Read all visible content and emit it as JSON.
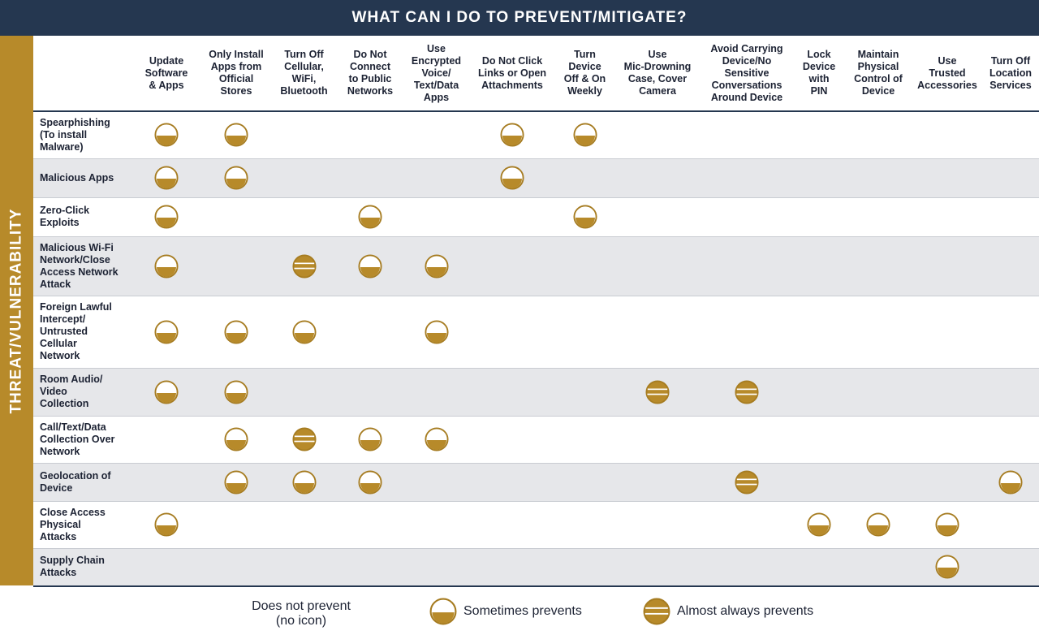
{
  "title": "WHAT CAN I DO TO PREVENT/MITIGATE?",
  "side_label": "THREAT/VULNERABILITY",
  "colors": {
    "header_bg": "#253750",
    "side_bg": "#b78a2a",
    "icon_fill": "#b78a2a",
    "icon_ring": "#a67c21",
    "row_alt": "#e6e7ea"
  },
  "columns": [
    {
      "label": "Update Software & Apps",
      "lines": [
        "Update",
        "Software",
        "& Apps"
      ]
    },
    {
      "label": "Only Install Apps from Official Stores",
      "lines": [
        "Only Install",
        "Apps from",
        "Official",
        "Stores"
      ]
    },
    {
      "label": "Turn Off Cellular, WiFi, Bluetooth",
      "lines": [
        "Turn Off",
        "Cellular,",
        "WiFi,",
        "Bluetooth"
      ]
    },
    {
      "label": "Do Not Connect to Public Networks",
      "lines": [
        "Do Not",
        "Connect",
        "to Public",
        "Networks"
      ]
    },
    {
      "label": "Use Encrypted Voice/ Text/Data Apps",
      "lines": [
        "Use",
        "Encrypted",
        "Voice/",
        "Text/Data",
        "Apps"
      ]
    },
    {
      "label": "Do Not Click Links or Open Attachments",
      "lines": [
        "Do Not Click",
        "Links or Open",
        "Attachments"
      ]
    },
    {
      "label": "Turn Device Off & On Weekly",
      "lines": [
        "Turn",
        "Device",
        "Off & On",
        "Weekly"
      ]
    },
    {
      "label": "Use Mic-Drowning Case, Cover Camera",
      "lines": [
        "Use",
        "Mic-Drowning",
        "Case, Cover",
        "Camera"
      ]
    },
    {
      "label": "Avoid Carrying Device/No Sensitive Conversations Around Device",
      "lines": [
        "Avoid Carrying",
        "Device/No",
        "Sensitive",
        "Conversations",
        "Around Device"
      ]
    },
    {
      "label": "Lock Device with PIN",
      "lines": [
        "Lock",
        "Device",
        "with",
        "PIN"
      ]
    },
    {
      "label": "Maintain Physical Control of Device",
      "lines": [
        "Maintain",
        "Physical",
        "Control of",
        "Device"
      ]
    },
    {
      "label": "Use Trusted Accessories",
      "lines": [
        "Use",
        "Trusted",
        "Accessories"
      ]
    },
    {
      "label": "Turn Off Location Services",
      "lines": [
        "Turn Off",
        "Location",
        "Services"
      ]
    }
  ],
  "rows": [
    {
      "threat": "Spearphishing (To install Malware)",
      "lines": [
        "Spearphishing",
        "(To install",
        "Malware)"
      ],
      "cells": [
        "sometimes",
        "sometimes",
        "none",
        "none",
        "none",
        "sometimes",
        "sometimes",
        "none",
        "none",
        "none",
        "none",
        "none",
        "none"
      ]
    },
    {
      "threat": "Malicious Apps",
      "lines": [
        "Malicious Apps"
      ],
      "cells": [
        "sometimes",
        "sometimes",
        "none",
        "none",
        "none",
        "sometimes",
        "none",
        "none",
        "none",
        "none",
        "none",
        "none",
        "none"
      ]
    },
    {
      "threat": "Zero-Click Exploits",
      "lines": [
        "Zero-Click",
        "Exploits"
      ],
      "cells": [
        "sometimes",
        "none",
        "none",
        "sometimes",
        "none",
        "none",
        "sometimes",
        "none",
        "none",
        "none",
        "none",
        "none",
        "none"
      ]
    },
    {
      "threat": "Malicious Wi-Fi Network/Close Access Network Attack",
      "lines": [
        "Malicious Wi-Fi",
        "Network/Close",
        "Access Network",
        "Attack"
      ],
      "cells": [
        "sometimes",
        "none",
        "almost",
        "sometimes",
        "sometimes",
        "none",
        "none",
        "none",
        "none",
        "none",
        "none",
        "none",
        "none"
      ]
    },
    {
      "threat": "Foreign Lawful Intercept/ Untrusted Cellular Network",
      "lines": [
        "Foreign Lawful",
        "Intercept/",
        "Untrusted",
        "Cellular",
        "Network"
      ],
      "cells": [
        "sometimes",
        "sometimes",
        "sometimes",
        "none",
        "sometimes",
        "none",
        "none",
        "none",
        "none",
        "none",
        "none",
        "none",
        "none"
      ]
    },
    {
      "threat": "Room Audio/ Video Collection",
      "lines": [
        "Room Audio/",
        "Video",
        "Collection"
      ],
      "cells": [
        "sometimes",
        "sometimes",
        "none",
        "none",
        "none",
        "none",
        "none",
        "almost",
        "almost",
        "none",
        "none",
        "none",
        "none"
      ]
    },
    {
      "threat": "Call/Text/Data Collection Over Network",
      "lines": [
        "Call/Text/Data",
        "Collection Over",
        "Network"
      ],
      "cells": [
        "none",
        "sometimes",
        "almost",
        "sometimes",
        "sometimes",
        "none",
        "none",
        "none",
        "none",
        "none",
        "none",
        "none",
        "none"
      ]
    },
    {
      "threat": "Geolocation of Device",
      "lines": [
        "Geolocation of",
        "Device"
      ],
      "cells": [
        "none",
        "sometimes",
        "sometimes",
        "sometimes",
        "none",
        "none",
        "none",
        "none",
        "almost",
        "none",
        "none",
        "none",
        "sometimes"
      ]
    },
    {
      "threat": "Close Access Physical Attacks",
      "lines": [
        "Close Access",
        "Physical",
        "Attacks"
      ],
      "cells": [
        "sometimes",
        "none",
        "none",
        "none",
        "none",
        "none",
        "none",
        "none",
        "none",
        "sometimes",
        "sometimes",
        "sometimes",
        "none"
      ]
    },
    {
      "threat": "Supply Chain Attacks",
      "lines": [
        "Supply Chain",
        "Attacks"
      ],
      "cells": [
        "none",
        "none",
        "none",
        "none",
        "none",
        "none",
        "none",
        "none",
        "none",
        "none",
        "none",
        "sometimes",
        "none"
      ]
    }
  ],
  "legend": {
    "none_line1": "Does not prevent",
    "none_line2": "(no icon)",
    "sometimes": "Sometimes prevents",
    "almost": "Almost always prevents"
  }
}
